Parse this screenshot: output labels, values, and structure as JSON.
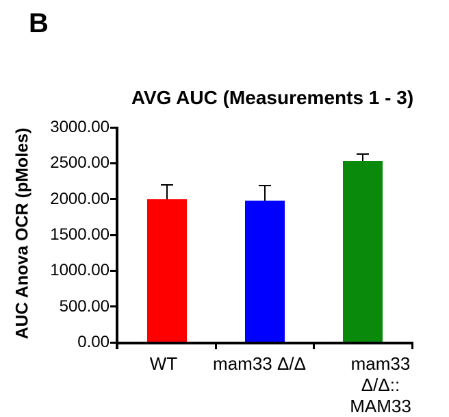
{
  "panel_label": "B",
  "chart_data": {
    "type": "bar",
    "title": "AVG AUC (Measurements 1 - 3)",
    "ylabel": "AUC Anova OCR (pMoles)",
    "xlabel": "",
    "categories": [
      "WT",
      "mam33 Δ/Δ",
      "mam33 Δ/Δ::\nMAM33"
    ],
    "values": [
      2000,
      1980,
      2530
    ],
    "errors_upper": [
      190,
      200,
      90
    ],
    "bar_colors": [
      "#ff0000",
      "#0000ff",
      "#0a8a0a"
    ],
    "axis_color": "#000000",
    "ylim": [
      0,
      3000
    ],
    "ytick_step": 500,
    "ytick_labels": [
      "3000.00",
      "2500.00",
      "2000.00",
      "1500.00",
      "1000.00",
      "500.00",
      "0.00"
    ],
    "grid": false,
    "legend_position": "none"
  }
}
